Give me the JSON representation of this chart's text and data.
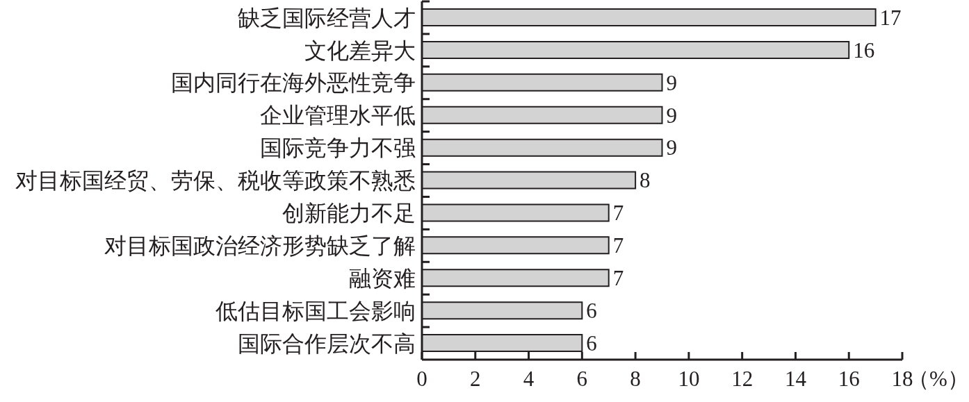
{
  "chart_data": {
    "type": "bar",
    "orientation": "horizontal",
    "categories": [
      "缺乏国际经营人才",
      "文化差异大",
      "国内同行在海外恶性竞争",
      "企业管理水平低",
      "国际竞争力不强",
      "对目标国经贸、劳保、税收等政策不熟悉",
      "创新能力不足",
      "对目标国政治经济形势缺乏了解",
      "融资难",
      "低估目标国工会影响",
      "国际合作层次不高"
    ],
    "values": [
      17,
      16,
      9,
      9,
      9,
      8,
      7,
      7,
      7,
      6,
      6
    ],
    "color": "#d3d3d3",
    "xlim": [
      0,
      18
    ],
    "xticks": [
      0,
      2,
      4,
      6,
      8,
      10,
      12,
      14,
      16,
      18
    ],
    "xlabel": "（%）",
    "data_labels": true
  }
}
